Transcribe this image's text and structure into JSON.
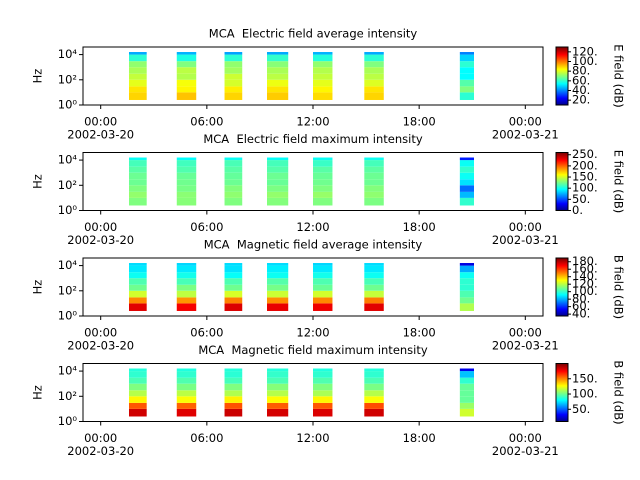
{
  "chart_data": [
    {
      "type": "heatmap",
      "title": "MCA  Electric field average intensity",
      "ylabel": "Hz",
      "colorbar_label": "E field (dB)",
      "colormap": "jet",
      "xlim": [
        -1,
        25
      ],
      "xticks": [
        {
          "value": 0,
          "label": "00:00"
        },
        {
          "value": 6,
          "label": "06:00"
        },
        {
          "value": 12,
          "label": "12:00"
        },
        {
          "value": 18,
          "label": "18:00"
        },
        {
          "value": 24,
          "label": "00:00"
        }
      ],
      "x_dates": [
        {
          "value": 0,
          "label": "2002-03-20"
        },
        {
          "value": 24,
          "label": "2002-03-21"
        }
      ],
      "log_y": true,
      "ylim": [
        1,
        40000
      ],
      "yticks": [
        {
          "value": 1,
          "label": "10⁰"
        },
        {
          "value": 100,
          "label": "10²"
        },
        {
          "value": 10000,
          "label": "10⁴"
        }
      ],
      "clim": [
        10,
        130
      ],
      "cticks": [
        {
          "value": 20,
          "label": "20."
        },
        {
          "value": 40,
          "label": "40."
        },
        {
          "value": 60,
          "label": "60."
        },
        {
          "value": 80,
          "label": "80."
        },
        {
          "value": 100,
          "label": "100."
        },
        {
          "value": 120,
          "label": "120."
        }
      ],
      "x_start": [
        1.6,
        4.3,
        7.0,
        9.4,
        12.0,
        14.9,
        20.3
      ],
      "x_end": [
        2.6,
        5.4,
        8.0,
        10.6,
        13.1,
        16.0,
        21.1
      ],
      "y_edges": [
        2.5,
        10,
        30,
        100,
        300,
        1000,
        3000,
        10000,
        16000
      ],
      "values": [
        [
          90,
          88,
          82,
          78,
          75,
          72,
          60,
          45
        ],
        [
          92,
          86,
          84,
          76,
          77,
          70,
          58,
          46
        ],
        [
          90,
          87,
          80,
          79,
          74,
          72,
          60,
          44
        ],
        [
          91,
          88,
          83,
          77,
          75,
          71,
          61,
          45
        ],
        [
          89,
          86,
          82,
          78,
          76,
          72,
          59,
          46
        ],
        [
          90,
          88,
          81,
          77,
          75,
          70,
          60,
          45
        ],
        [
          60,
          70,
          65,
          55,
          55,
          60,
          50,
          40
        ]
      ]
    },
    {
      "type": "heatmap",
      "title": "MCA  Electric field maximum intensity",
      "ylabel": "Hz",
      "colorbar_label": "E field (dB)",
      "colormap": "jet",
      "xlim": [
        -1,
        25
      ],
      "xticks": [
        {
          "value": 0,
          "label": "00:00"
        },
        {
          "value": 6,
          "label": "06:00"
        },
        {
          "value": 12,
          "label": "12:00"
        },
        {
          "value": 18,
          "label": "18:00"
        },
        {
          "value": 24,
          "label": "00:00"
        }
      ],
      "x_dates": [
        {
          "value": 0,
          "label": "2002-03-20"
        },
        {
          "value": 24,
          "label": "2002-03-21"
        }
      ],
      "log_y": true,
      "ylim": [
        1,
        40000
      ],
      "yticks": [
        {
          "value": 1,
          "label": "10⁰"
        },
        {
          "value": 100,
          "label": "10²"
        },
        {
          "value": 10000,
          "label": "10⁴"
        }
      ],
      "clim": [
        0,
        260
      ],
      "cticks": [
        {
          "value": 0,
          "label": "0."
        },
        {
          "value": 50,
          "label": "50."
        },
        {
          "value": 100,
          "label": "100."
        },
        {
          "value": 150,
          "label": "150."
        },
        {
          "value": 200,
          "label": "200."
        },
        {
          "value": 250,
          "label": "250."
        }
      ],
      "x_start": [
        1.6,
        4.3,
        7.0,
        9.4,
        12.0,
        14.9,
        20.3
      ],
      "x_end": [
        2.6,
        5.4,
        8.0,
        10.6,
        13.1,
        16.0,
        21.1
      ],
      "y_edges": [
        2.5,
        10,
        30,
        100,
        300,
        1000,
        3000,
        10000,
        16000
      ],
      "values": [
        [
          130,
          135,
          130,
          125,
          125,
          120,
          115,
          100
        ],
        [
          132,
          133,
          128,
          126,
          124,
          118,
          114,
          98
        ],
        [
          130,
          134,
          131,
          125,
          123,
          120,
          116,
          100
        ],
        [
          131,
          135,
          129,
          124,
          125,
          119,
          115,
          99
        ],
        [
          130,
          136,
          130,
          126,
          124,
          120,
          112,
          100
        ],
        [
          129,
          134,
          131,
          125,
          125,
          121,
          115,
          101
        ],
        [
          110,
          80,
          60,
          90,
          100,
          110,
          100,
          40
        ]
      ]
    },
    {
      "type": "heatmap",
      "title": "MCA  Magnetic field average intensity",
      "ylabel": "Hz",
      "colorbar_label": "B field (dB)",
      "colormap": "jet",
      "xlim": [
        -1,
        25
      ],
      "xticks": [
        {
          "value": 0,
          "label": "00:00"
        },
        {
          "value": 6,
          "label": "06:00"
        },
        {
          "value": 12,
          "label": "12:00"
        },
        {
          "value": 18,
          "label": "18:00"
        },
        {
          "value": 24,
          "label": "00:00"
        }
      ],
      "x_dates": [
        {
          "value": 0,
          "label": "2002-03-20"
        },
        {
          "value": 24,
          "label": "2002-03-21"
        }
      ],
      "log_y": true,
      "ylim": [
        1,
        40000
      ],
      "yticks": [
        {
          "value": 1,
          "label": "10⁰"
        },
        {
          "value": 100,
          "label": "10²"
        },
        {
          "value": 10000,
          "label": "10⁴"
        }
      ],
      "clim": [
        35,
        190
      ],
      "cticks": [
        {
          "value": 40,
          "label": "40."
        },
        {
          "value": 60,
          "label": "60."
        },
        {
          "value": 80,
          "label": "80."
        },
        {
          "value": 100,
          "label": "100."
        },
        {
          "value": 120,
          "label": "120."
        },
        {
          "value": 140,
          "label": "140."
        },
        {
          "value": 160,
          "label": "160."
        },
        {
          "value": 180,
          "label": "180."
        }
      ],
      "x_start": [
        1.6,
        4.3,
        7.0,
        9.4,
        12.0,
        14.9,
        20.3
      ],
      "x_end": [
        2.6,
        5.4,
        8.0,
        10.6,
        13.1,
        16.0,
        21.1
      ],
      "y_edges": [
        2.5,
        10,
        30,
        100,
        300,
        1000,
        3000,
        10000,
        16000
      ],
      "values": [
        [
          175,
          150,
          125,
          110,
          105,
          95,
          90,
          88
        ],
        [
          172,
          148,
          122,
          112,
          104,
          96,
          90,
          87
        ],
        [
          176,
          151,
          126,
          110,
          105,
          94,
          89,
          88
        ],
        [
          174,
          149,
          124,
          111,
          106,
          95,
          91,
          88
        ],
        [
          173,
          150,
          125,
          109,
          105,
          96,
          90,
          87
        ],
        [
          175,
          152,
          123,
          110,
          104,
          95,
          90,
          88
        ],
        [
          120,
          110,
          105,
          100,
          100,
          95,
          80,
          50
        ]
      ]
    },
    {
      "type": "heatmap",
      "title": "MCA  Magnetic field maximum intensity",
      "ylabel": "Hz",
      "colorbar_label": "B field (dB)",
      "colormap": "jet",
      "xlim": [
        -1,
        25
      ],
      "xticks": [
        {
          "value": 0,
          "label": "00:00"
        },
        {
          "value": 6,
          "label": "06:00"
        },
        {
          "value": 12,
          "label": "12:00"
        },
        {
          "value": 18,
          "label": "18:00"
        },
        {
          "value": 24,
          "label": "00:00"
        }
      ],
      "x_dates": [
        {
          "value": 0,
          "label": "2002-03-20"
        },
        {
          "value": 24,
          "label": "2002-03-21"
        }
      ],
      "log_y": true,
      "ylim": [
        1,
        40000
      ],
      "yticks": [
        {
          "value": 1,
          "label": "10⁰"
        },
        {
          "value": 100,
          "label": "10²"
        },
        {
          "value": 10000,
          "label": "10⁴"
        }
      ],
      "clim": [
        10,
        200
      ],
      "cticks": [
        {
          "value": 50,
          "label": "50."
        },
        {
          "value": 100,
          "label": "100."
        },
        {
          "value": 150,
          "label": "150."
        }
      ],
      "x_start": [
        1.6,
        4.3,
        7.0,
        9.4,
        12.0,
        14.9,
        20.3
      ],
      "x_end": [
        2.6,
        5.4,
        8.0,
        10.6,
        13.1,
        16.0,
        21.1
      ],
      "y_edges": [
        2.5,
        10,
        30,
        100,
        300,
        1000,
        3000,
        10000,
        16000
      ],
      "values": [
        [
          185,
          160,
          130,
          115,
          105,
          95,
          90,
          88
        ],
        [
          182,
          158,
          128,
          116,
          104,
          96,
          90,
          87
        ],
        [
          186,
          161,
          131,
          114,
          105,
          94,
          89,
          88
        ],
        [
          184,
          159,
          129,
          115,
          106,
          95,
          91,
          88
        ],
        [
          183,
          160,
          130,
          113,
          105,
          96,
          90,
          87
        ],
        [
          185,
          162,
          128,
          115,
          104,
          95,
          90,
          88
        ],
        [
          120,
          110,
          100,
          100,
          100,
          90,
          70,
          30
        ]
      ]
    }
  ]
}
